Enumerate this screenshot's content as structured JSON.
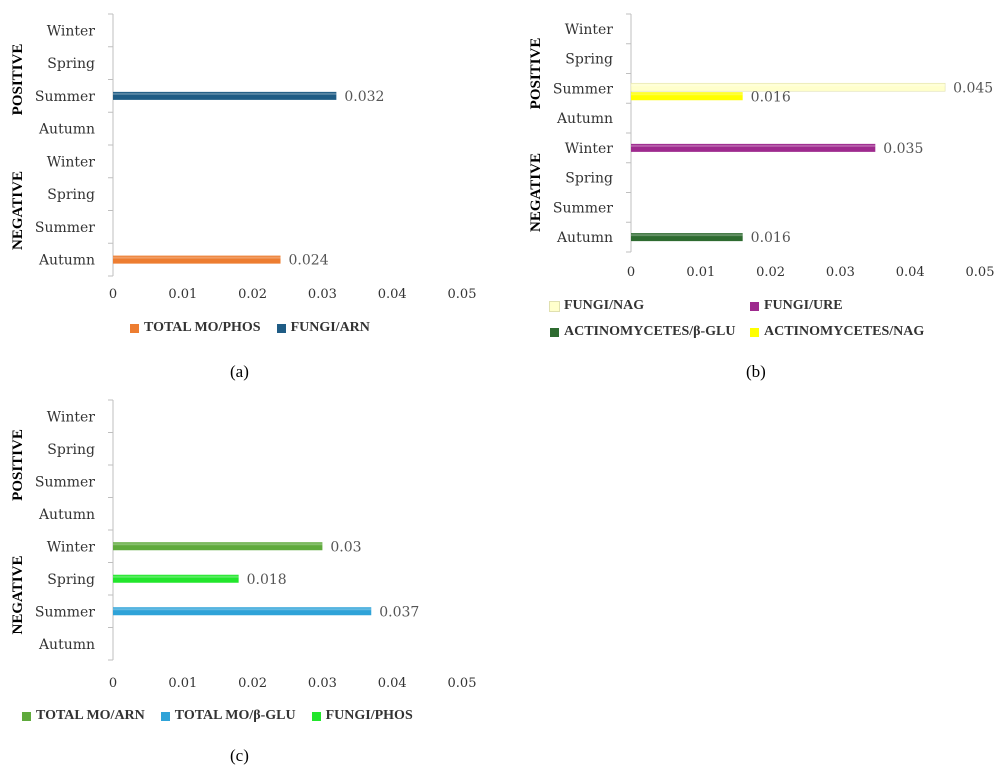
{
  "chart_data": [
    {
      "type": "bar",
      "orientation": "horizontal",
      "panel_label": "(a)",
      "groups": [
        {
          "name": "POSITIVE",
          "categories": [
            "Winter",
            "Spring",
            "Summer",
            "Autumn"
          ]
        },
        {
          "name": "NEGATIVE",
          "categories": [
            "Winter",
            "Spring",
            "Summer",
            "Autumn"
          ]
        }
      ],
      "xlim": [
        0,
        0.05
      ],
      "xticks": [
        "0",
        "0.01",
        "0.02",
        "0.03",
        "0.04",
        "0.05"
      ],
      "series": [
        {
          "name": "TOTAL MO/PHOS",
          "color": "#ED7D31",
          "points": [
            {
              "group": "NEGATIVE",
              "category": "Autumn",
              "value": 0.024,
              "label": "0.024"
            }
          ]
        },
        {
          "name": "FUNGI/ARN",
          "color": "#1F5C85",
          "points": [
            {
              "group": "POSITIVE",
              "category": "Summer",
              "value": 0.032,
              "label": "0.032"
            }
          ]
        }
      ]
    },
    {
      "type": "bar",
      "orientation": "horizontal",
      "panel_label": "(b)",
      "groups": [
        {
          "name": "POSITIVE",
          "categories": [
            "Winter",
            "Spring",
            "Summer",
            "Autumn"
          ]
        },
        {
          "name": "NEGATIVE",
          "categories": [
            "Winter",
            "Spring",
            "Summer",
            "Autumn"
          ]
        }
      ],
      "xlim": [
        0,
        0.05
      ],
      "xticks": [
        "0",
        "0.01",
        "0.02",
        "0.03",
        "0.04",
        "0.05"
      ],
      "series": [
        {
          "name": "FUNGI/NAG",
          "color": "#FFFFCC",
          "points": [
            {
              "group": "POSITIVE",
              "category": "Summer",
              "value": 0.045,
              "label": "0.045"
            }
          ]
        },
        {
          "name": "FUNGI/URE",
          "color": "#9E2A8E",
          "points": [
            {
              "group": "NEGATIVE",
              "category": "Winter",
              "value": 0.035,
              "label": "0.035"
            }
          ]
        },
        {
          "name": "ACTINOMYCETES/β-GLU",
          "color": "#2E6B30",
          "points": [
            {
              "group": "NEGATIVE",
              "category": "Autumn",
              "value": 0.016,
              "label": "0.016"
            }
          ]
        },
        {
          "name": "ACTINOMYCETES/NAG",
          "color": "#FFFF00",
          "points": [
            {
              "group": "POSITIVE",
              "category": "Summer",
              "value": 0.016,
              "label": "0.016"
            }
          ]
        }
      ]
    },
    {
      "type": "bar",
      "orientation": "horizontal",
      "panel_label": "(c)",
      "groups": [
        {
          "name": "POSITIVE",
          "categories": [
            "Winter",
            "Spring",
            "Summer",
            "Autumn"
          ]
        },
        {
          "name": "NEGATIVE",
          "categories": [
            "Winter",
            "Spring",
            "Summer",
            "Autumn"
          ]
        }
      ],
      "xlim": [
        0,
        0.05
      ],
      "xticks": [
        "0",
        "0.01",
        "0.02",
        "0.03",
        "0.04",
        "0.05"
      ],
      "series": [
        {
          "name": "TOTAL MO/ARN",
          "color": "#5FAA3C",
          "points": [
            {
              "group": "NEGATIVE",
              "category": "Winter",
              "value": 0.03,
              "label": "0.03"
            }
          ]
        },
        {
          "name": "TOTAL MO/β-GLU",
          "color": "#2FA3D8",
          "points": [
            {
              "group": "NEGATIVE",
              "category": "Summer",
              "value": 0.037,
              "label": "0.037"
            }
          ]
        },
        {
          "name": "FUNGI/PHOS",
          "color": "#22E62C",
          "points": [
            {
              "group": "NEGATIVE",
              "category": "Spring",
              "value": 0.018,
              "label": "0.018"
            }
          ]
        }
      ]
    }
  ]
}
